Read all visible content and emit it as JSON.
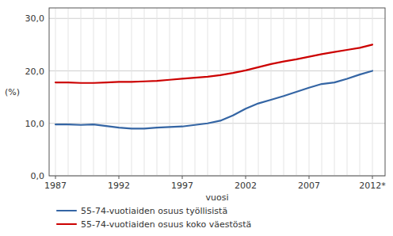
{
  "chart_data": {
    "type": "line",
    "x_label": "vuosi",
    "y_label": "(%)",
    "x": [
      1987,
      1988,
      1989,
      1990,
      1991,
      1992,
      1993,
      1994,
      1995,
      1996,
      1997,
      1998,
      1999,
      2000,
      2001,
      2002,
      2003,
      2004,
      2005,
      2006,
      2007,
      2008,
      2009,
      2010,
      2011,
      2012
    ],
    "series": [
      {
        "name": "55-74-vuotiaiden osuus työllisistä",
        "color": "#3465A4",
        "values": [
          9.8,
          9.8,
          9.7,
          9.8,
          9.5,
          9.2,
          9.0,
          9.0,
          9.2,
          9.3,
          9.4,
          9.7,
          10.0,
          10.5,
          11.5,
          12.8,
          13.8,
          14.5,
          15.2,
          16.0,
          16.8,
          17.5,
          17.8,
          18.5,
          19.3,
          20.0
        ]
      },
      {
        "name": "55-74-vuotiaiden osuus koko väestöstä",
        "color": "#CC0000",
        "values": [
          17.8,
          17.8,
          17.7,
          17.7,
          17.8,
          17.9,
          17.9,
          18.0,
          18.1,
          18.3,
          18.5,
          18.7,
          18.9,
          19.2,
          19.6,
          20.1,
          20.7,
          21.3,
          21.8,
          22.2,
          22.7,
          23.2,
          23.6,
          24.0,
          24.4,
          25.0
        ]
      }
    ],
    "xlim": [
      1986.5,
      2013.0
    ],
    "ylim": [
      0,
      32
    ],
    "xticks": [
      1987,
      1992,
      1997,
      2002,
      2007,
      {
        "value": 2012,
        "label": "2012*"
      }
    ],
    "yticks": [
      {
        "value": 0.0,
        "label": "0,0"
      },
      {
        "value": 10.0,
        "label": "10,0"
      },
      {
        "value": 20.0,
        "label": "20,0"
      },
      {
        "value": 30.0,
        "label": "30,0"
      }
    ],
    "grid": true,
    "legend": "bottom"
  }
}
